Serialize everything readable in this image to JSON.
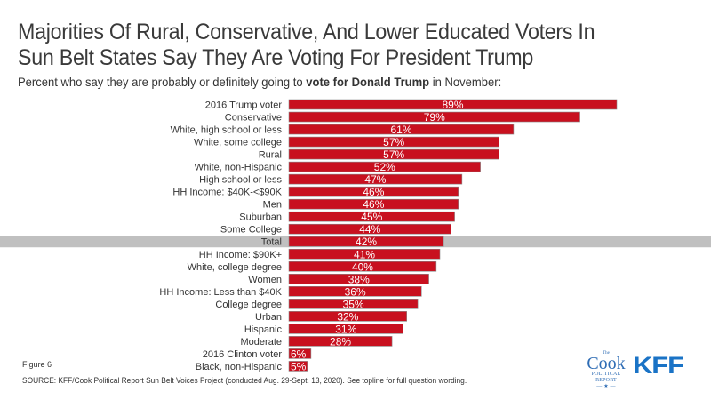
{
  "title_lines": [
    "Majorities Of Rural, Conservative, And Lower Educated Voters In",
    "Sun Belt States Say They Are Voting For President Trump"
  ],
  "subtitle": {
    "before": "Percent who say they are probably or definitely going to ",
    "bold": "vote for Donald Trump",
    "after": " in November:"
  },
  "figure_label": "Figure 6",
  "source": "SOURCE: KFF/Cook Political Report Sun Belt Voices Project (conducted Aug. 29-Sept. 13, 2020). See topline for full question wording.",
  "logos": {
    "cook_the": "The",
    "cook": "Cook",
    "cook_line2": "POLITICAL",
    "cook_line3": "REPORT",
    "cook_star": "— ★ —",
    "kff": "KFF"
  },
  "colors": {
    "bar": "#c8101f",
    "highlight_band": "#c0c0c0",
    "label_text": "#333333",
    "value_text": "#ffffff"
  },
  "chart_data": {
    "type": "bar",
    "orientation": "horizontal",
    "title": "Majorities Of Rural, Conservative, And Lower Educated Voters In Sun Belt States Say They Are Voting For President Trump",
    "subtitle": "Percent who say they are probably or definitely going to vote for Donald Trump in November:",
    "xlabel": "",
    "ylabel": "",
    "xlim": [
      0,
      100
    ],
    "grid": false,
    "legend": "none",
    "value_suffix": "%",
    "highlight_category": "Total",
    "categories": [
      "2016 Trump voter",
      "Conservative",
      "White, high school or less",
      "White, some college",
      "Rural",
      "White, non-Hispanic",
      "High school or less",
      "HH Income: $40K-<$90K",
      "Men",
      "Suburban",
      "Some College",
      "Total",
      "HH Income: $90K+",
      "White, college degree",
      "Women",
      "HH Income: Less than $40K",
      "College degree",
      "Urban",
      "Hispanic",
      "Moderate",
      "2016 Clinton voter",
      "Black, non-Hispanic"
    ],
    "values": [
      89,
      79,
      61,
      57,
      57,
      52,
      47,
      46,
      46,
      45,
      44,
      42,
      41,
      40,
      38,
      36,
      35,
      32,
      31,
      28,
      6,
      5
    ]
  }
}
